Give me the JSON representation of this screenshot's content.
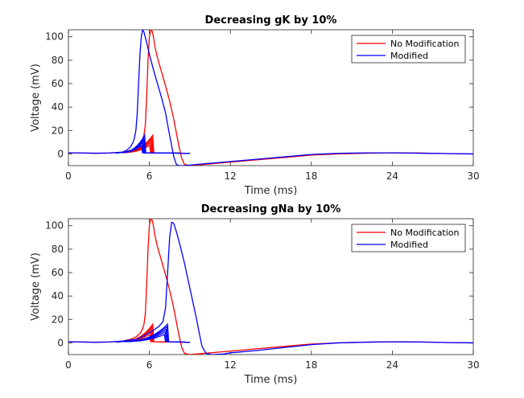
{
  "chart_data": [
    {
      "type": "line",
      "title": "Decreasing gK by 10%",
      "xlabel": "Time (ms)",
      "ylabel": "Voltage (mV)",
      "xlim": [
        0,
        30
      ],
      "ylim": [
        -10,
        106
      ],
      "xticks": [
        0,
        6,
        12,
        18,
        24,
        30
      ],
      "yticks": [
        0,
        20,
        40,
        60,
        80,
        100
      ],
      "grid": false,
      "legend_position": "top-right",
      "series": [
        {
          "name": "No Modification",
          "color": "#ff0000",
          "x": [
            0,
            1,
            2,
            3,
            4,
            4.6,
            5.0,
            5.3,
            5.5,
            5.6,
            5.7,
            5.8,
            5.9,
            6.0,
            6.1,
            6.2,
            6.3,
            6.4,
            6.6,
            6.9,
            7.2,
            7.5,
            7.8,
            8.0,
            8.2,
            8.4,
            8.6,
            9.0,
            10,
            11,
            12,
            14,
            16,
            18,
            20,
            22,
            24,
            26,
            28,
            30
          ],
          "y": [
            1,
            0.7,
            0.5,
            0.7,
            1.5,
            3,
            5,
            8,
            12,
            16,
            25,
            50,
            80,
            100,
            106,
            105,
            100,
            92,
            82,
            70,
            58,
            45,
            30,
            18,
            6,
            -4,
            -9,
            -10,
            -9,
            -8,
            -7,
            -5,
            -3,
            -1,
            0,
            0.6,
            1,
            0.8,
            0.3,
            0
          ]
        },
        {
          "name": "Modified",
          "color": "#0000ff",
          "x": [
            0,
            1,
            2,
            3,
            4,
            4.3,
            4.6,
            4.8,
            4.9,
            5.0,
            5.1,
            5.2,
            5.3,
            5.4,
            5.5,
            5.6,
            5.8,
            6.0,
            6.3,
            6.6,
            6.9,
            7.2,
            7.4,
            7.6,
            7.8,
            8.0,
            8.2,
            8.6,
            9.5,
            11,
            12,
            14,
            16,
            18,
            20,
            22,
            24,
            26,
            28,
            30
          ],
          "y": [
            1,
            0.8,
            0.6,
            0.8,
            1.5,
            3,
            6,
            10,
            14,
            20,
            35,
            60,
            85,
            100,
            106,
            104,
            95,
            85,
            72,
            60,
            48,
            35,
            22,
            10,
            -2,
            -9,
            -10,
            -10,
            -9,
            -7.5,
            -6.5,
            -4.5,
            -2.5,
            -0.5,
            0.5,
            0.9,
            0.9,
            0.6,
            0.3,
            0
          ]
        }
      ]
    },
    {
      "type": "line",
      "title": "Decreasing gNa by 10%",
      "xlabel": "Time (ms)",
      "ylabel": "Voltage (mV)",
      "xlim": [
        0,
        30
      ],
      "ylim": [
        -10,
        106
      ],
      "xticks": [
        0,
        6,
        12,
        18,
        24,
        30
      ],
      "yticks": [
        0,
        20,
        40,
        60,
        80,
        100
      ],
      "grid": false,
      "legend_position": "top-right",
      "series": [
        {
          "name": "No Modification",
          "color": "#ff0000",
          "x": [
            0,
            1,
            2,
            3,
            4,
            4.6,
            5.0,
            5.3,
            5.5,
            5.6,
            5.7,
            5.8,
            5.9,
            6.0,
            6.1,
            6.2,
            6.3,
            6.4,
            6.6,
            6.9,
            7.2,
            7.5,
            7.8,
            8.0,
            8.2,
            8.4,
            8.6,
            9.0,
            10,
            11,
            12,
            14,
            16,
            18,
            20,
            22,
            24,
            26,
            28,
            30
          ],
          "y": [
            1,
            0.7,
            0.5,
            0.7,
            1.5,
            3,
            5,
            8,
            12,
            16,
            25,
            50,
            80,
            100,
            106,
            105,
            100,
            92,
            82,
            70,
            58,
            45,
            30,
            18,
            6,
            -4,
            -9,
            -10,
            -9,
            -8,
            -7,
            -5,
            -3,
            -1,
            0,
            0.6,
            1,
            0.8,
            0.3,
            0
          ]
        },
        {
          "name": "Modified",
          "color": "#0000ff",
          "x": [
            0,
            1,
            2,
            3,
            4,
            5,
            5.6,
            6.2,
            6.7,
            7.0,
            7.2,
            7.35,
            7.5,
            7.65,
            7.8,
            8.0,
            8.3,
            8.6,
            8.9,
            9.2,
            9.5,
            9.7,
            9.9,
            10.2,
            10.6,
            11.5,
            12,
            14,
            16,
            18,
            20,
            22,
            24,
            26,
            28,
            30
          ],
          "y": [
            1,
            0.7,
            0.5,
            0.8,
            1.5,
            3,
            6,
            10,
            14,
            18,
            30,
            60,
            90,
            103,
            102,
            95,
            82,
            68,
            52,
            36,
            20,
            8,
            -3,
            -9,
            -10,
            -9.5,
            -8.5,
            -6.5,
            -4,
            -1.5,
            0,
            0.6,
            0.9,
            0.7,
            0.3,
            0
          ]
        }
      ]
    }
  ]
}
